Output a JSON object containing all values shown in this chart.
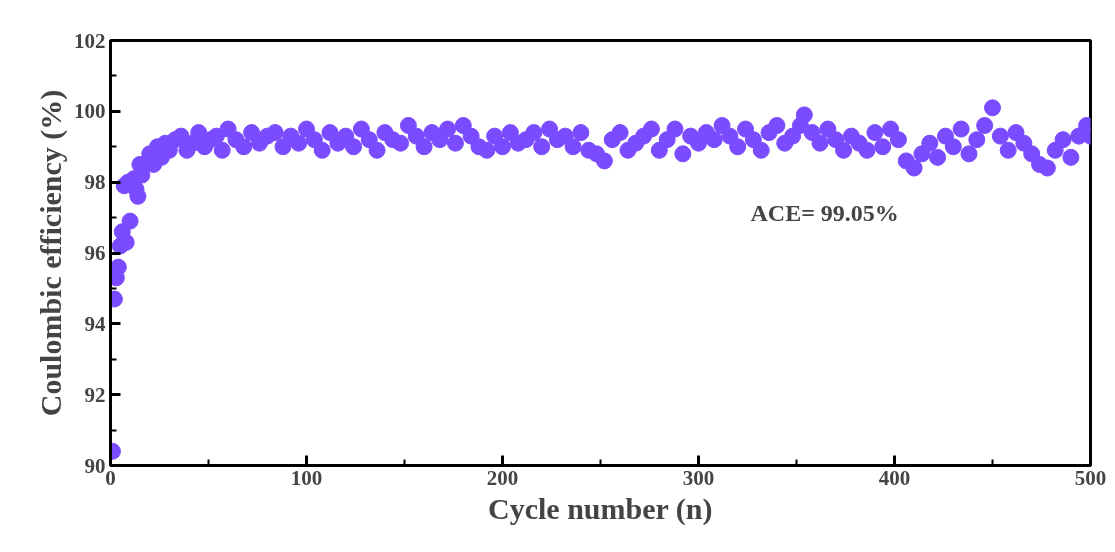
{
  "chart_data": {
    "type": "scatter",
    "xlabel": "Cycle number (n)",
    "ylabel": "Coulombic efficiency (%)",
    "annotations": [
      "ACE= 99.05%"
    ],
    "xlim": [
      0,
      500
    ],
    "ylim": [
      90,
      102
    ],
    "xticks": [
      0,
      100,
      200,
      300,
      400,
      500
    ],
    "yticks": [
      90,
      92,
      94,
      96,
      98,
      100,
      102
    ],
    "grid": false,
    "marker": "circle",
    "series": [
      {
        "color": "#7b4bff",
        "x": [
          1,
          2,
          3,
          4,
          5,
          6,
          7,
          8,
          9,
          10,
          12,
          13,
          14,
          15,
          16,
          20,
          22,
          24,
          26,
          28,
          30,
          33,
          36,
          39,
          42,
          45,
          48,
          51,
          54,
          57,
          60,
          64,
          68,
          72,
          76,
          80,
          84,
          88,
          92,
          96,
          100,
          104,
          108,
          112,
          116,
          120,
          124,
          128,
          132,
          136,
          140,
          144,
          148,
          152,
          156,
          160,
          164,
          168,
          172,
          176,
          180,
          184,
          188,
          192,
          196,
          200,
          204,
          208,
          212,
          216,
          220,
          224,
          228,
          232,
          236,
          240,
          244,
          248,
          252,
          256,
          260,
          264,
          268,
          272,
          276,
          280,
          284,
          288,
          292,
          296,
          300,
          304,
          308,
          312,
          316,
          320,
          324,
          328,
          332,
          336,
          340,
          344,
          348,
          352,
          354,
          358,
          362,
          366,
          370,
          374,
          378,
          382,
          386,
          390,
          394,
          398,
          402,
          406,
          410,
          414,
          418,
          422,
          426,
          430,
          434,
          438,
          442,
          446,
          450,
          454,
          458,
          462,
          466,
          470,
          474,
          478,
          482,
          486,
          490,
          494,
          498,
          500
        ],
        "values": [
          90.4,
          94.7,
          95.3,
          95.6,
          96.2,
          96.6,
          97.9,
          96.3,
          98.0,
          96.9,
          98.1,
          97.8,
          97.6,
          98.5,
          98.2,
          98.8,
          98.5,
          99.0,
          98.7,
          99.1,
          98.9,
          99.2,
          99.3,
          98.9,
          99.1,
          99.4,
          99.0,
          99.2,
          99.3,
          98.9,
          99.5,
          99.2,
          99.0,
          99.4,
          99.1,
          99.3,
          99.4,
          99.0,
          99.3,
          99.1,
          99.5,
          99.2,
          98.9,
          99.4,
          99.1,
          99.3,
          99.0,
          99.5,
          99.2,
          98.9,
          99.4,
          99.2,
          99.1,
          99.6,
          99.3,
          99.0,
          99.4,
          99.2,
          99.5,
          99.1,
          99.6,
          99.3,
          99.0,
          98.9,
          99.3,
          99.0,
          99.4,
          99.1,
          99.2,
          99.4,
          99.0,
          99.5,
          99.2,
          99.3,
          99.0,
          99.4,
          98.9,
          98.8,
          98.6,
          99.2,
          99.4,
          98.9,
          99.1,
          99.3,
          99.5,
          98.9,
          99.2,
          99.5,
          98.8,
          99.3,
          99.1,
          99.4,
          99.2,
          99.6,
          99.3,
          99.0,
          99.5,
          99.2,
          98.9,
          99.4,
          99.6,
          99.1,
          99.3,
          99.6,
          99.9,
          99.4,
          99.1,
          99.5,
          99.2,
          98.9,
          99.3,
          99.1,
          98.9,
          99.4,
          99.0,
          99.5,
          99.2,
          98.6,
          98.4,
          98.8,
          99.1,
          98.7,
          99.3,
          99.0,
          99.5,
          98.8,
          99.2,
          99.6,
          100.1,
          99.3,
          98.9,
          99.4,
          99.1,
          98.8,
          98.5,
          98.4,
          98.9,
          99.2,
          98.7,
          99.3,
          99.6,
          99.3
        ]
      }
    ]
  }
}
